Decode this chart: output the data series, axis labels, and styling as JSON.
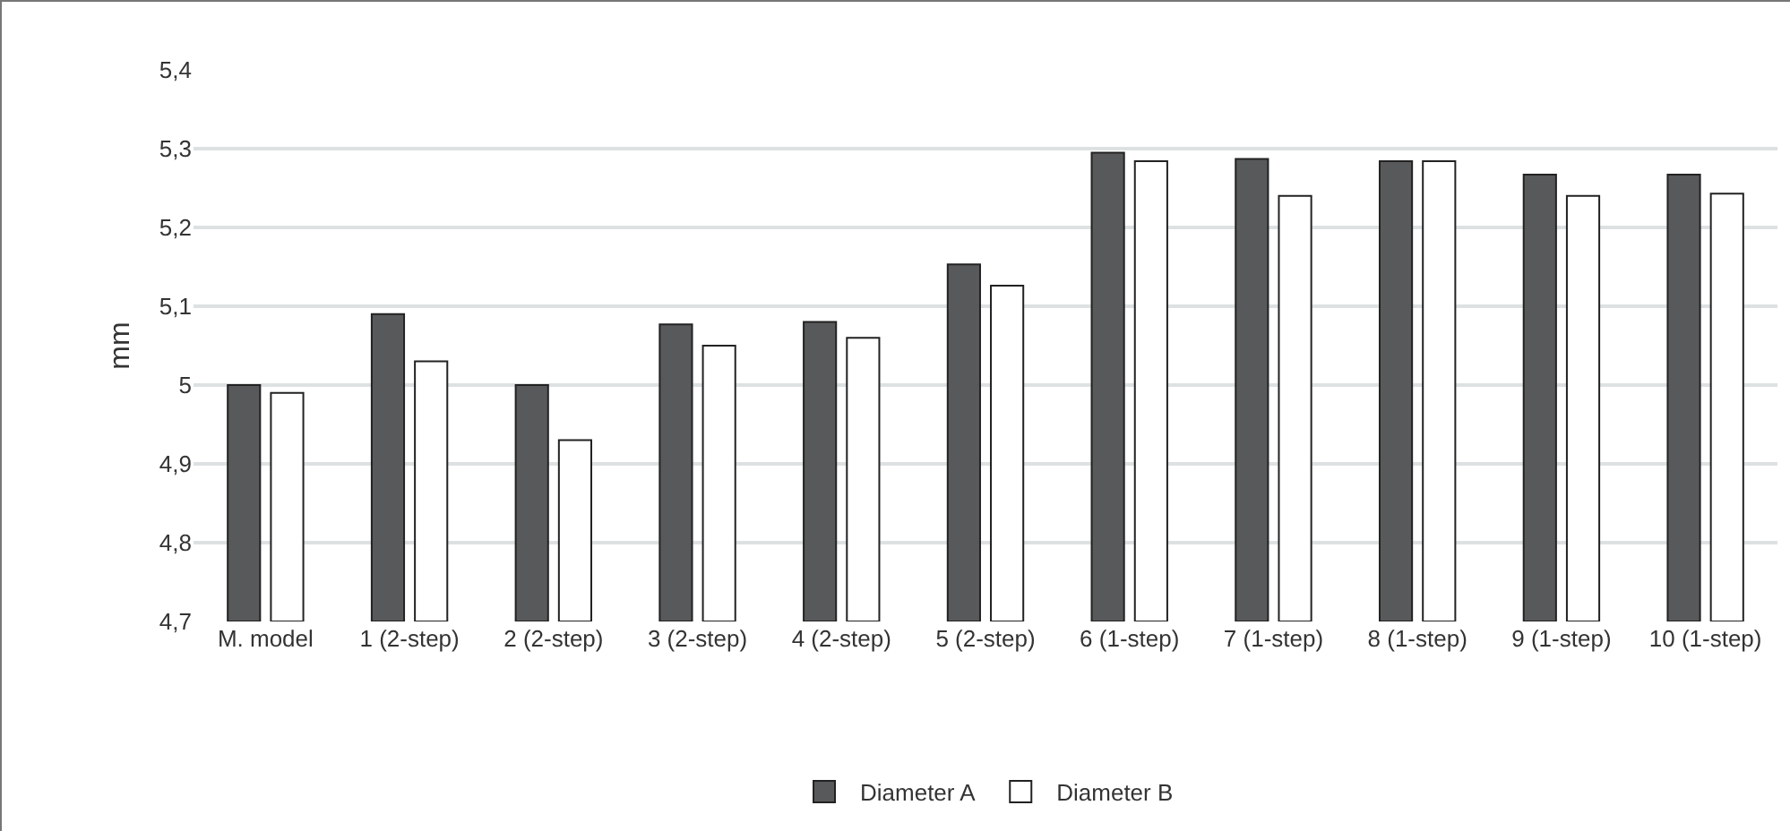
{
  "chart_data": {
    "type": "bar",
    "ylabel": "mm",
    "categories": [
      "M. model",
      "1 (2-step)",
      "2 (2-step)",
      "3 (2-step)",
      "4 (2-step)",
      "5 (2-step)",
      "6 (1-step)",
      "7 (1-step)",
      "8 (1-step)",
      "9 (1-step)",
      "10 (1-step)"
    ],
    "series": [
      {
        "name": "Diameter A",
        "color": "#58595b",
        "values": [
          5.0,
          5.09,
          5.0,
          5.077,
          5.08,
          5.153,
          5.295,
          5.287,
          5.284,
          5.267,
          5.267
        ]
      },
      {
        "name": "Diameter B",
        "color": "#ffffff",
        "values": [
          4.99,
          5.03,
          4.93,
          5.05,
          5.06,
          5.126,
          5.284,
          5.24,
          5.284,
          5.24,
          5.243
        ]
      }
    ],
    "ylim": [
      4.7,
      5.4
    ],
    "yticks": [
      {
        "value": 4.7,
        "label": "4,7"
      },
      {
        "value": 4.8,
        "label": "4,8"
      },
      {
        "value": 4.9,
        "label": "4,9"
      },
      {
        "value": 5,
        "label": "5"
      },
      {
        "value": 5.1,
        "label": "5,1"
      },
      {
        "value": 5.2,
        "label": "5,2"
      },
      {
        "value": 5.3,
        "label": "5,3"
      },
      {
        "value": 5.4,
        "label": "5,4"
      }
    ],
    "grid": "y",
    "legend": "bottom"
  }
}
